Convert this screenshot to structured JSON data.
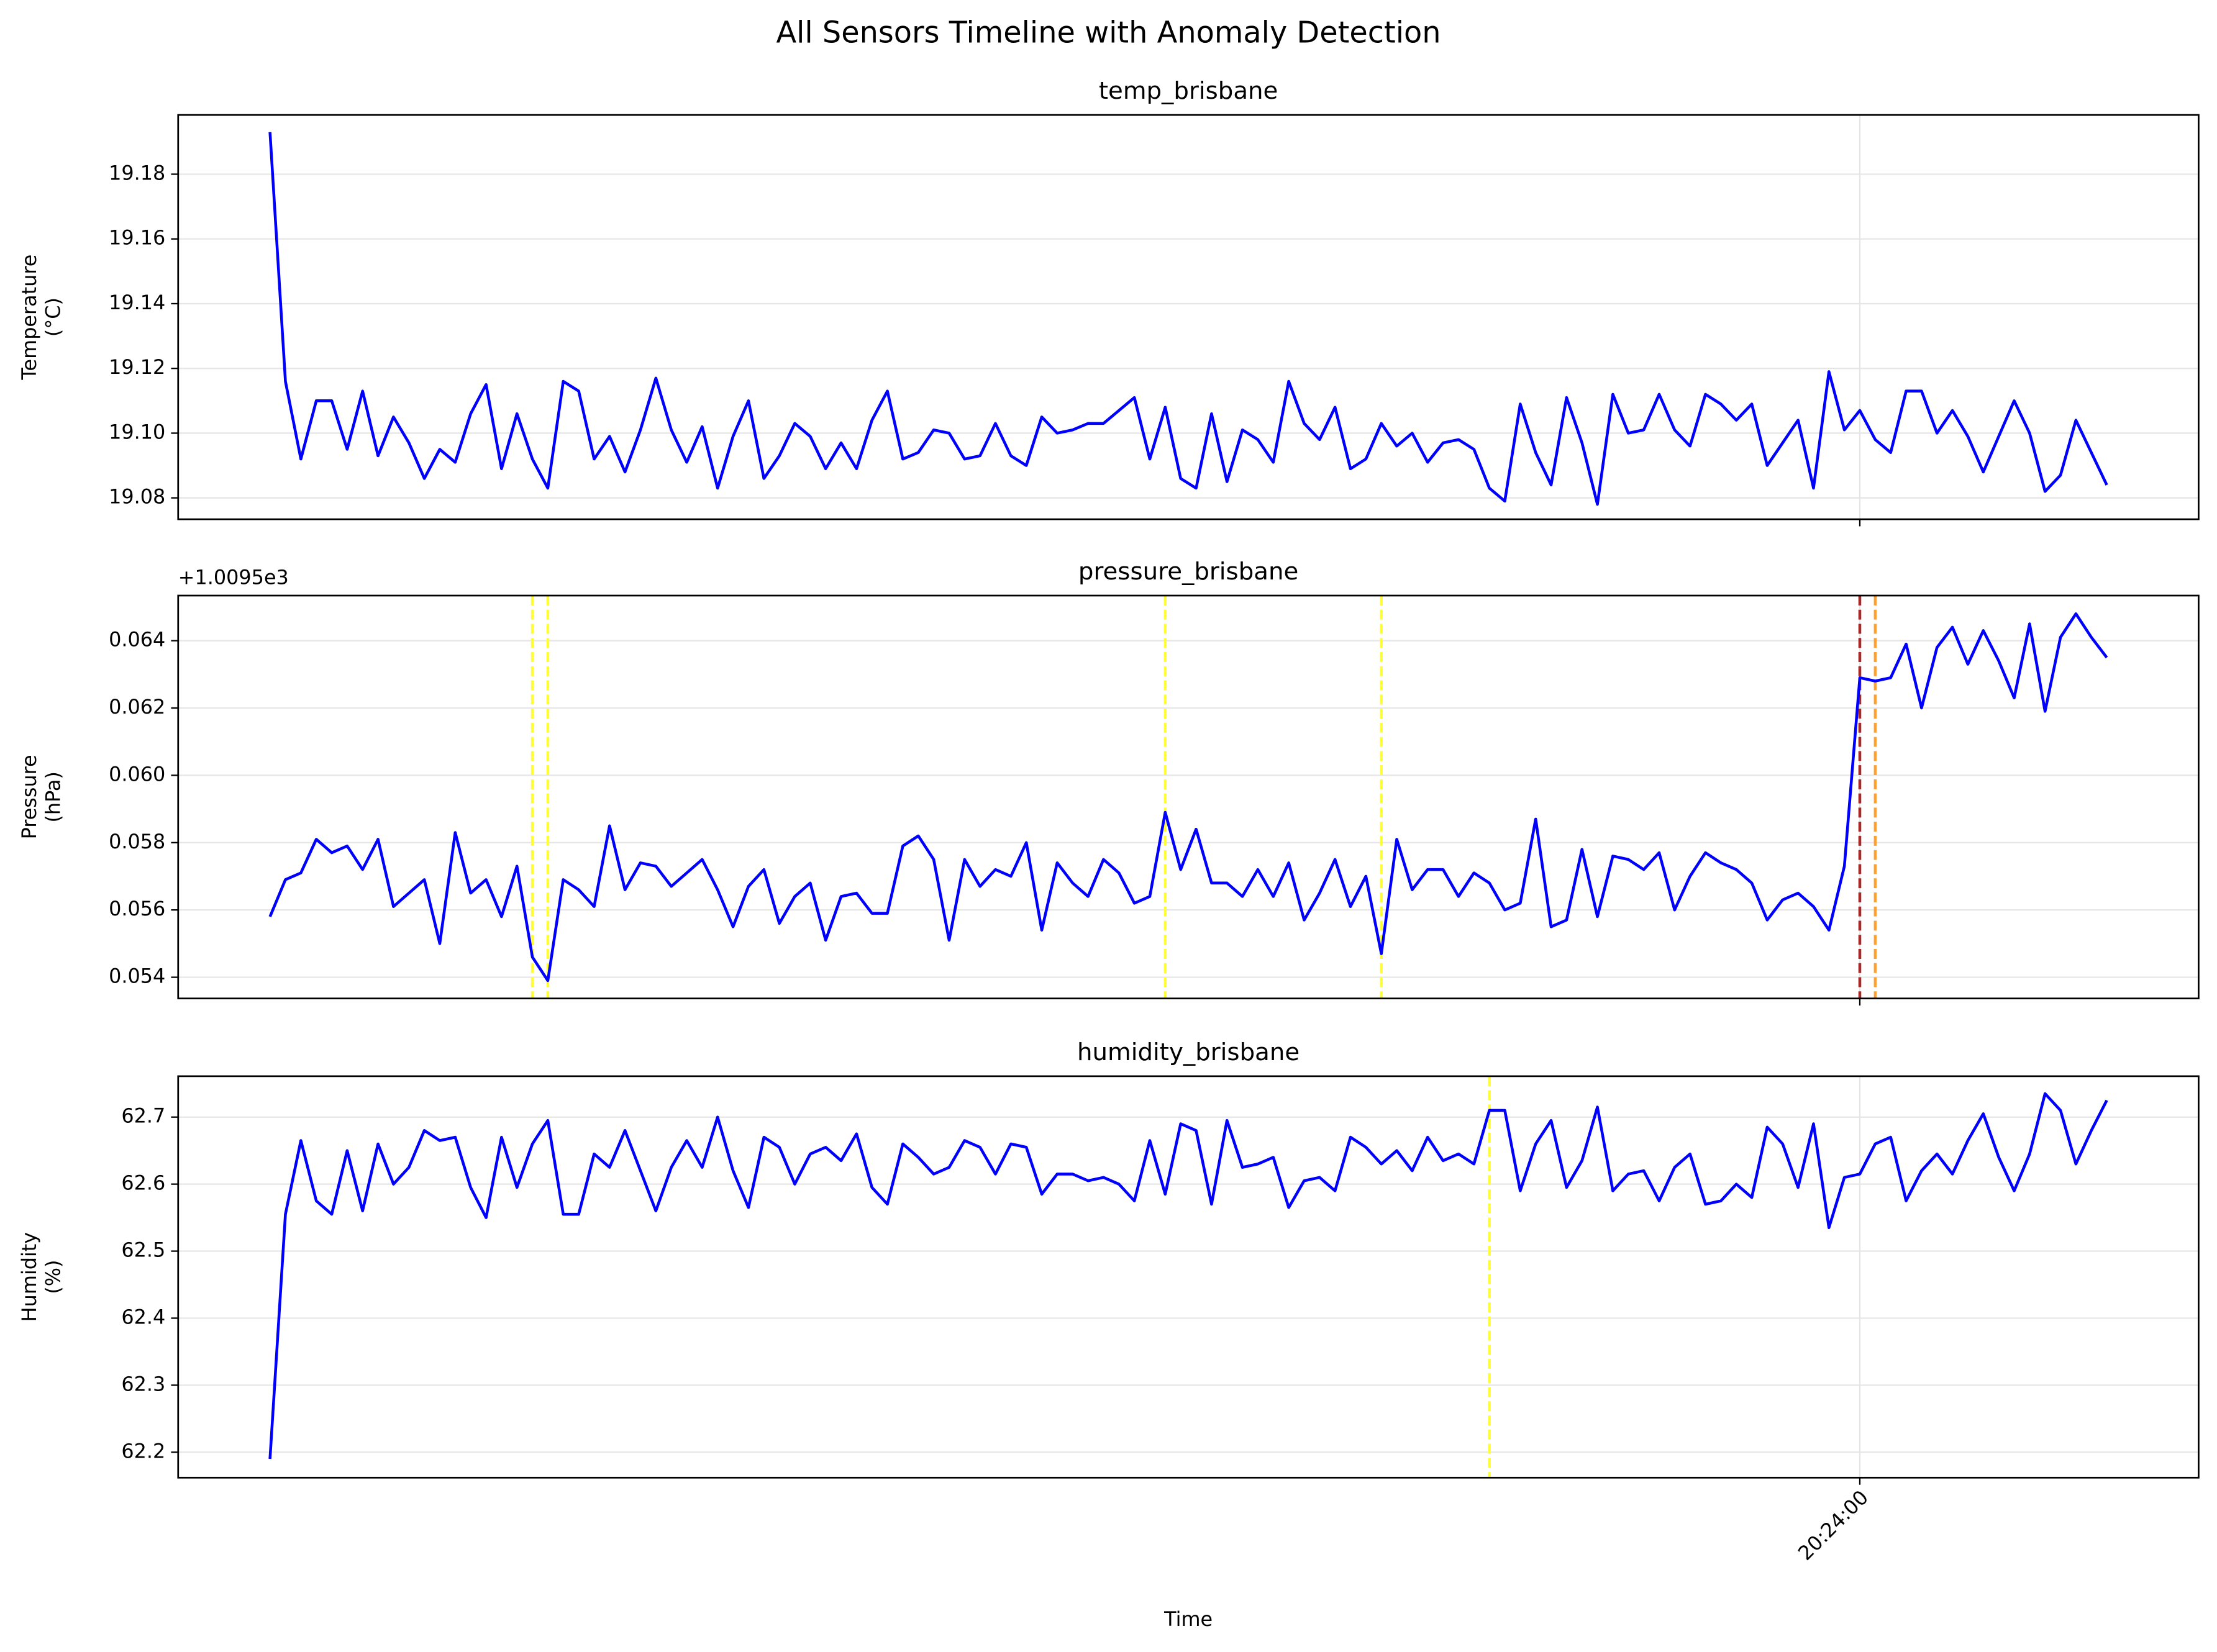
{
  "title": "All Sensors Timeline with Anomaly Detection",
  "chart_data": [
    {
      "type": "line",
      "title": "temp_brisbane",
      "ylabel": [
        "Temperature",
        "(°C)"
      ],
      "ylim": [
        19.0734,
        19.1983
      ],
      "yticks": [
        19.08,
        {
          "value": 19.1,
          "label": "19.10"
        },
        19.12,
        19.14,
        19.16,
        19.18
      ],
      "grid": true,
      "color": "#0000ff",
      "values": [
        19.193,
        19.116,
        19.092,
        19.11,
        19.11,
        19.095,
        19.113,
        19.093,
        19.105,
        19.097,
        19.086,
        19.095,
        19.091,
        19.106,
        19.115,
        19.089,
        19.106,
        19.092,
        19.083,
        19.116,
        19.113,
        19.092,
        19.099,
        19.088,
        19.101,
        19.117,
        19.101,
        19.091,
        19.102,
        19.083,
        19.099,
        19.11,
        19.086,
        19.093,
        19.103,
        19.099,
        19.089,
        19.097,
        19.089,
        19.104,
        19.113,
        19.092,
        19.094,
        19.101,
        19.1,
        19.092,
        19.093,
        19.103,
        19.093,
        19.09,
        19.105,
        19.1,
        19.101,
        19.103,
        19.103,
        19.107,
        19.111,
        19.092,
        19.108,
        19.086,
        19.083,
        19.106,
        19.085,
        19.101,
        19.098,
        19.091,
        19.116,
        19.103,
        19.098,
        19.108,
        19.089,
        19.092,
        19.103,
        19.096,
        19.1,
        19.091,
        19.097,
        19.098,
        19.095,
        19.083,
        19.079,
        19.109,
        19.094,
        19.084,
        19.111,
        19.097,
        19.078,
        19.112,
        19.1,
        19.101,
        19.112,
        19.101,
        19.096,
        19.112,
        19.109,
        19.104,
        19.109,
        19.09,
        19.097,
        19.104,
        19.083,
        19.119,
        19.101,
        19.107,
        19.098,
        19.094,
        19.113,
        19.113,
        19.1,
        19.107,
        19.099,
        19.088,
        19.099,
        19.11,
        19.1,
        19.082,
        19.087,
        19.104,
        19.094,
        19.084
      ],
      "anomalies": []
    },
    {
      "type": "line",
      "title": "pressure_brisbane",
      "ylabel": [
        "Pressure",
        "(hPa)"
      ],
      "offset_text": "+1.0095e3",
      "ylim": [
        0.05337,
        0.06534
      ],
      "yticks": [
        0.054,
        0.056,
        0.058,
        {
          "value": 0.06,
          "label": "0.060"
        },
        0.062,
        0.064
      ],
      "grid": true,
      "color": "#0000ff",
      "values": [
        0.0558,
        0.0569,
        0.0571,
        0.0581,
        0.0577,
        0.0579,
        0.0572,
        0.0581,
        0.0561,
        0.0565,
        0.0569,
        0.055,
        0.0583,
        0.0565,
        0.0569,
        0.0558,
        0.0573,
        0.0546,
        0.0539,
        0.0569,
        0.0566,
        0.0561,
        0.0585,
        0.0566,
        0.0574,
        0.0573,
        0.0567,
        0.0571,
        0.0575,
        0.0566,
        0.0555,
        0.0567,
        0.0572,
        0.0556,
        0.0564,
        0.0568,
        0.0551,
        0.0564,
        0.0565,
        0.0559,
        0.0559,
        0.0579,
        0.0582,
        0.0575,
        0.0551,
        0.0575,
        0.0567,
        0.0572,
        0.057,
        0.058,
        0.0554,
        0.0574,
        0.0568,
        0.0564,
        0.0575,
        0.0571,
        0.0562,
        0.0564,
        0.0589,
        0.0572,
        0.0584,
        0.0568,
        0.0568,
        0.0564,
        0.0572,
        0.0564,
        0.0574,
        0.0557,
        0.0565,
        0.0575,
        0.0561,
        0.057,
        0.0547,
        0.0581,
        0.0566,
        0.0572,
        0.0572,
        0.0564,
        0.0571,
        0.0568,
        0.056,
        0.0562,
        0.0587,
        0.0555,
        0.0557,
        0.0578,
        0.0558,
        0.0576,
        0.0575,
        0.0572,
        0.0577,
        0.056,
        0.057,
        0.0577,
        0.0574,
        0.0572,
        0.0568,
        0.0557,
        0.0563,
        0.0565,
        0.0561,
        0.0554,
        0.0573,
        0.0629,
        0.0628,
        0.0629,
        0.0639,
        0.062,
        0.0638,
        0.0644,
        0.0633,
        0.0643,
        0.0634,
        0.0623,
        0.0645,
        0.0619,
        0.0641,
        0.0648,
        0.0641,
        0.0635
      ],
      "anomalies": [
        {
          "index": 17,
          "color": "#ffff33"
        },
        {
          "index": 18,
          "color": "#ffff33"
        },
        {
          "index": 58,
          "color": "#ffff33"
        },
        {
          "index": 72,
          "color": "#ffff33"
        },
        {
          "index": 103,
          "color": "#a52a2a"
        },
        {
          "index": 104,
          "color": "#ffa033"
        }
      ]
    },
    {
      "type": "line",
      "title": "humidity_brisbane",
      "ylabel": [
        "Humidity",
        "(%)"
      ],
      "xlabel": "Time",
      "ylim": [
        62.162,
        62.761
      ],
      "yticks": [
        62.2,
        62.3,
        62.4,
        62.5,
        62.6,
        62.7
      ],
      "grid": true,
      "color": "#0000ff",
      "categories": [
        null,
        null,
        null,
        null,
        null,
        null,
        null,
        null,
        null,
        null,
        null,
        null,
        null,
        null,
        null,
        null,
        null,
        null,
        null,
        null,
        null,
        null,
        null,
        null,
        null,
        null,
        null,
        null,
        null,
        null,
        null,
        null,
        null,
        null,
        null,
        null,
        null,
        null,
        null,
        null,
        null,
        null,
        null,
        null,
        null,
        null,
        null,
        null,
        null,
        null,
        null,
        null,
        null,
        null,
        null,
        null,
        null,
        null,
        null,
        null,
        null,
        null,
        null,
        null,
        null,
        null,
        null,
        null,
        null,
        null,
        null,
        null,
        null,
        null,
        null,
        null,
        null,
        null,
        null,
        null,
        null,
        null,
        null,
        null,
        null,
        null,
        null,
        null,
        null,
        null,
        null,
        null,
        null,
        null,
        null,
        null,
        null,
        null,
        null,
        null,
        null,
        null,
        null,
        "20:24:00",
        null,
        null,
        null,
        null,
        null,
        null,
        null,
        null,
        null,
        null,
        null,
        null,
        null,
        null,
        null,
        null
      ],
      "values": [
        62.19,
        62.555,
        62.665,
        62.575,
        62.555,
        62.65,
        62.56,
        62.66,
        62.6,
        62.625,
        62.68,
        62.665,
        62.67,
        62.595,
        62.55,
        62.67,
        62.595,
        62.66,
        62.695,
        62.555,
        62.555,
        62.645,
        62.625,
        62.68,
        62.62,
        62.56,
        62.625,
        62.665,
        62.625,
        62.7,
        62.62,
        62.565,
        62.67,
        62.655,
        62.6,
        62.645,
        62.655,
        62.635,
        62.675,
        62.595,
        62.57,
        62.66,
        62.64,
        62.615,
        62.625,
        62.665,
        62.655,
        62.615,
        62.66,
        62.655,
        62.585,
        62.615,
        62.615,
        62.605,
        62.61,
        62.6,
        62.575,
        62.665,
        62.585,
        62.69,
        62.68,
        62.57,
        62.695,
        62.625,
        62.63,
        62.64,
        62.565,
        62.605,
        62.61,
        62.59,
        62.67,
        62.655,
        62.63,
        62.65,
        62.62,
        62.67,
        62.635,
        62.645,
        62.63,
        62.71,
        62.71,
        62.59,
        62.66,
        62.695,
        62.595,
        62.635,
        62.715,
        62.59,
        62.615,
        62.62,
        62.575,
        62.625,
        62.645,
        62.57,
        62.575,
        62.6,
        62.58,
        62.685,
        62.66,
        62.595,
        62.69,
        62.535,
        62.61,
        62.615,
        62.66,
        62.67,
        62.575,
        62.62,
        62.645,
        62.615,
        62.665,
        62.705,
        62.64,
        62.59,
        62.645,
        62.735,
        62.71,
        62.63,
        62.68,
        62.725
      ],
      "anomalies": [
        {
          "index": 79,
          "color": "#ffff33"
        }
      ]
    }
  ]
}
